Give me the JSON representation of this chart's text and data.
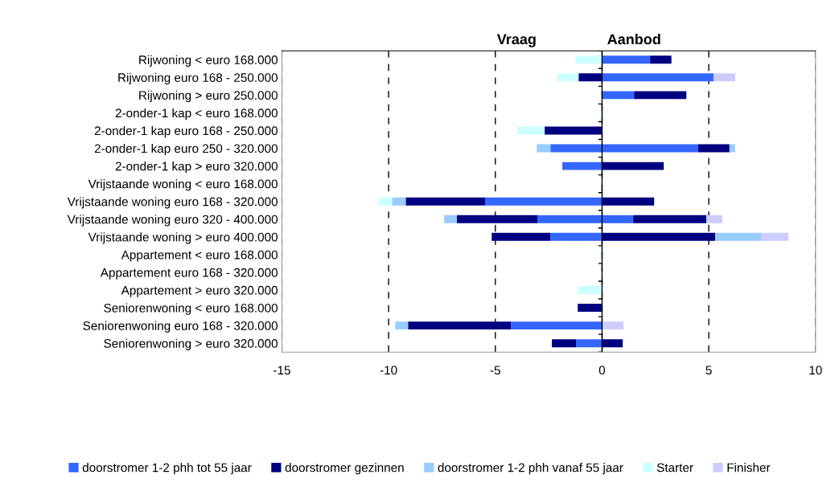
{
  "chart_data": {
    "type": "bar",
    "orientation": "horizontal",
    "stacked": true,
    "categories": [
      "Rijwoning < euro 168.000",
      "Rijwoning euro 168 - 250.000",
      "Rijwoning > euro 250.000",
      "2-onder-1 kap < euro 168.000",
      "2-onder-1 kap euro 168 - 250.000",
      "2-onder-1 kap euro 250 - 320.000",
      "2-onder-1 kap > euro 320.000",
      "Vrijstaande woning < euro 168.000",
      "Vrijstaande woning euro 168 - 320.000",
      "Vrijstaande woning euro 320 - 400.000",
      "Vrijstaande woning > euro 400.000",
      "Appartement < euro 168.000",
      "Appartement euro 168 - 320.000",
      "Appartement > euro 320.000",
      "Seniorenwoning < euro 168.000",
      "Seniorenwoning euro 168 - 320.000",
      "Seniorenwoning > euro 320.000"
    ],
    "series": [
      {
        "color": "#3366ff",
        "values": [
          null,
          null,
          null,
          null,
          null,
          -2.42,
          -1.86,
          null,
          -5.47,
          -3.03,
          -2.42,
          null,
          null,
          null,
          null,
          -4.27,
          -1.22
        ]
      },
      {
        "color": "#000080",
        "values": [
          null,
          -1.1,
          null,
          null,
          -2.69,
          null,
          null,
          null,
          -3.73,
          -3.77,
          -2.75,
          null,
          null,
          null,
          -1.14,
          -4.82,
          -1.13
        ]
      },
      {
        "color": "#99ccff",
        "values": [
          null,
          null,
          null,
          null,
          null,
          -0.64,
          null,
          null,
          -0.64,
          -0.6,
          null,
          null,
          null,
          null,
          null,
          -0.6,
          null
        ]
      },
      {
        "color": "#ccffff",
        "values": [
          -1.25,
          -0.98,
          null,
          null,
          -1.28,
          null,
          null,
          null,
          -0.64,
          null,
          null,
          null,
          null,
          -1.14,
          null,
          null,
          null
        ]
      },
      {
        "name": "doorstromer 1-2 phh tot 55 jaar",
        "color": "#3366ff",
        "values": [
          2.25,
          5.22,
          1.5,
          null,
          null,
          4.5,
          null,
          null,
          null,
          1.46,
          null,
          null,
          null,
          null,
          null,
          null,
          null
        ]
      },
      {
        "name": "doorstromer gezinnen",
        "color": "#000080",
        "values": [
          1.0,
          null,
          2.45,
          null,
          null,
          1.47,
          2.89,
          null,
          2.44,
          3.43,
          5.3,
          null,
          null,
          null,
          null,
          null,
          0.97
        ]
      },
      {
        "name": "doorstromer 1-2 phh vanaf 55 jaar",
        "color": "#99ccff",
        "values": [
          null,
          null,
          null,
          null,
          null,
          0.26,
          null,
          null,
          null,
          null,
          2.15,
          null,
          null,
          null,
          null,
          null,
          null
        ]
      },
      {
        "name": "Starter",
        "color": "#ccffff",
        "values": [
          null,
          null,
          null,
          0.1,
          null,
          null,
          null,
          null,
          null,
          null,
          null,
          0.1,
          null,
          null,
          null,
          null,
          null
        ]
      },
      {
        "name": "Finisher",
        "color": "#ccccff",
        "values": [
          null,
          1.02,
          null,
          null,
          null,
          null,
          null,
          null,
          null,
          0.75,
          1.28,
          null,
          null,
          null,
          null,
          1.0,
          null
        ]
      }
    ],
    "annotations": [
      "Vraag",
      "Aanbod"
    ],
    "xlim": [
      -15,
      10
    ],
    "xticks": [
      -15,
      -10,
      -5,
      0,
      5,
      10
    ],
    "grid": "x",
    "legend": "bottom"
  }
}
